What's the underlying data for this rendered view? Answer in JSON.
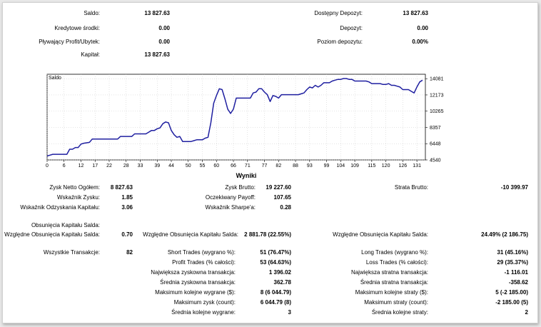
{
  "summary": {
    "saldo": {
      "label": "Saldo:",
      "value": "13 827.63"
    },
    "kredytowe": {
      "label": "Kredytowe środki:",
      "value": "0.00"
    },
    "plywajacy": {
      "label": "Pływający Profit/Ubytek:",
      "value": "0.00"
    },
    "kapital": {
      "label": "Kapitał:",
      "value": "13 827.63"
    },
    "dostepny": {
      "label": "Dostępny Depozyt:",
      "value": "13 827.63"
    },
    "depozyt": {
      "label": "Depozyt:",
      "value": "0.00"
    },
    "poziom": {
      "label": "Poziom depozytu:",
      "value": "0.00%"
    }
  },
  "chart_data": {
    "type": "line",
    "title": "Saldo",
    "x_ticks": [
      "0",
      "6",
      "12",
      "17",
      "22",
      "28",
      "33",
      "39",
      "44",
      "50",
      "55",
      "60",
      "66",
      "71",
      "77",
      "82",
      "88",
      "93",
      "99",
      "104",
      "109",
      "115",
      "120",
      "126",
      "131"
    ],
    "y_ticks": [
      "4540",
      "6448",
      "8357",
      "10265",
      "12173",
      "14081"
    ],
    "xlim": [
      0,
      134
    ],
    "ylim": [
      4540,
      14600
    ],
    "grid": true,
    "series": [
      {
        "color": "#1f1fa0",
        "x": [
          0,
          1,
          2,
          3,
          4,
          5,
          6,
          7,
          8,
          9,
          10,
          11,
          12,
          13,
          14,
          15,
          16,
          17,
          18,
          19,
          20,
          21,
          22,
          23,
          24,
          25,
          26,
          27,
          28,
          29,
          30,
          31,
          32,
          33,
          34,
          35,
          36,
          37,
          38,
          39,
          40,
          41,
          42,
          43,
          44,
          45,
          46,
          47,
          48,
          49,
          50,
          51,
          52,
          53,
          54,
          55,
          56,
          57,
          58,
          59,
          60,
          61,
          62,
          63,
          64,
          65,
          66,
          67,
          68,
          69,
          70,
          71,
          72,
          73,
          74,
          75,
          76,
          77,
          78,
          79,
          80,
          81,
          82,
          83,
          84,
          85,
          86,
          87,
          88,
          89,
          90,
          91,
          92,
          93,
          94,
          95,
          96,
          97,
          98,
          99,
          100,
          101,
          102,
          103,
          104,
          105,
          106,
          107,
          108,
          109,
          110,
          111,
          112,
          113,
          114,
          115,
          116,
          117,
          118,
          119,
          120,
          121,
          122,
          123,
          124,
          125,
          126,
          127,
          128,
          129,
          130,
          131,
          132,
          133
        ],
        "y": [
          5000,
          5100,
          5200,
          5200,
          5200,
          5200,
          5200,
          5200,
          5800,
          5800,
          6000,
          6000,
          6400,
          6500,
          6550,
          6600,
          7000,
          7000,
          7000,
          7000,
          7000,
          7000,
          7000,
          7000,
          7000,
          7000,
          7300,
          7300,
          7300,
          7300,
          7300,
          7600,
          7600,
          7600,
          7600,
          7600,
          7800,
          8000,
          8000,
          8200,
          8300,
          8800,
          9000,
          8900,
          8000,
          7500,
          7200,
          7300,
          6700,
          6700,
          6700,
          6700,
          6800,
          6900,
          6900,
          6900,
          7100,
          7200,
          8900,
          11200,
          12100,
          12900,
          12800,
          11700,
          10500,
          10000,
          10500,
          11800,
          11800,
          11800,
          11800,
          11800,
          11800,
          12400,
          12500,
          12900,
          12900,
          12500,
          12200,
          11400,
          12100,
          12000,
          11800,
          12200,
          12200,
          12200,
          12200,
          12200,
          12200,
          12200,
          12300,
          12400,
          12800,
          13100,
          13000,
          13300,
          13100,
          13300,
          13600,
          13600,
          13600,
          13800,
          13900,
          14000,
          14000,
          14100,
          14100,
          14000,
          14000,
          13800,
          13800,
          13800,
          13800,
          13800,
          13700,
          13500,
          13500,
          13500,
          13500,
          13400,
          13400,
          13500,
          13300,
          13300,
          13200,
          13100,
          12800,
          12800,
          12800,
          12600,
          12400,
          13100,
          13700,
          13900
        ]
      }
    ]
  },
  "section_title": "Wyniki",
  "stats": {
    "zysk_netto": {
      "label": "Zysk Netto Ogółem:",
      "value": "8 827.63"
    },
    "wskaznik_zysku": {
      "label": "Wskaźnik Zysku:",
      "value": "1.85"
    },
    "wskaznik_odzyskania": {
      "label": "Wskaźnik Odzyskania Kapitału:",
      "value": "3.06"
    },
    "zysk_brutto": {
      "label": "Zysk Brutto:",
      "value": "19 227.60"
    },
    "oczekiwany_payoff": {
      "label": "Oczekiwany Payoff:",
      "value": "107.65"
    },
    "sharpe": {
      "label": "Wskaźnik Sharpe'a:",
      "value": "0.28"
    },
    "strata_brutto": {
      "label": "Strata Brutto:",
      "value": "-10 399.97"
    },
    "obsuniecia_header": {
      "label": "Obsunięcia Kapitału Salda:"
    },
    "wzgledne_obs_1": {
      "label": "Względne Obsunięcia Kapitału Salda:",
      "value": "0.70"
    },
    "wzgledne_obs_2": {
      "label": "Względne Obsunięcia Kapitału Salda:",
      "value": "2 881.78 (22.55%)"
    },
    "wzgledne_obs_3": {
      "label": "Względne Obsunięcia Kapitału Salda:",
      "value": "24.49% (2 186.75)"
    },
    "wszystkie": {
      "label": "Wszystkie Transakcje:",
      "value": "82"
    },
    "short_trades": {
      "label": "Short Trades (wygrano %):",
      "value": "51 (76.47%)"
    },
    "profit_trades": {
      "label": "Profit Trades (% całości):",
      "value": "53 (64.63%)"
    },
    "najwieksza_zysk": {
      "label": "Największa zyskowna transakcja:",
      "value": "1 396.02"
    },
    "srednia_zysk": {
      "label": "Średnia zyskowna transakcja:",
      "value": "362.78"
    },
    "max_wygrane": {
      "label": "Maksimum kolejne wygrane ($):",
      "value": "8 (6 044.79)"
    },
    "max_zysk": {
      "label": "Maksimum zysk (count):",
      "value": "6 044.79 (8)"
    },
    "srednia_wygrane": {
      "label": "Średnia kolejne wygrane:",
      "value": "3"
    },
    "long_trades": {
      "label": "Long Trades (wygrano %):",
      "value": "31 (45.16%)"
    },
    "loss_trades": {
      "label": "Loss Trades (% całości):",
      "value": "29 (35.37%)"
    },
    "najwieksza_strata": {
      "label": "Największa stratna transakcja:",
      "value": "-1 116.01"
    },
    "srednia_strata": {
      "label": "Średnia stratna transakcja:",
      "value": "-358.62"
    },
    "max_straty": {
      "label": "Maksimum kolejne straty ($):",
      "value": "5 (-2 185.00)"
    },
    "max_strata": {
      "label": "Maksimum straty (count):",
      "value": "-2 185.00 (5)"
    },
    "srednia_straty": {
      "label": "Średnia kolejne straty:",
      "value": "2"
    }
  }
}
